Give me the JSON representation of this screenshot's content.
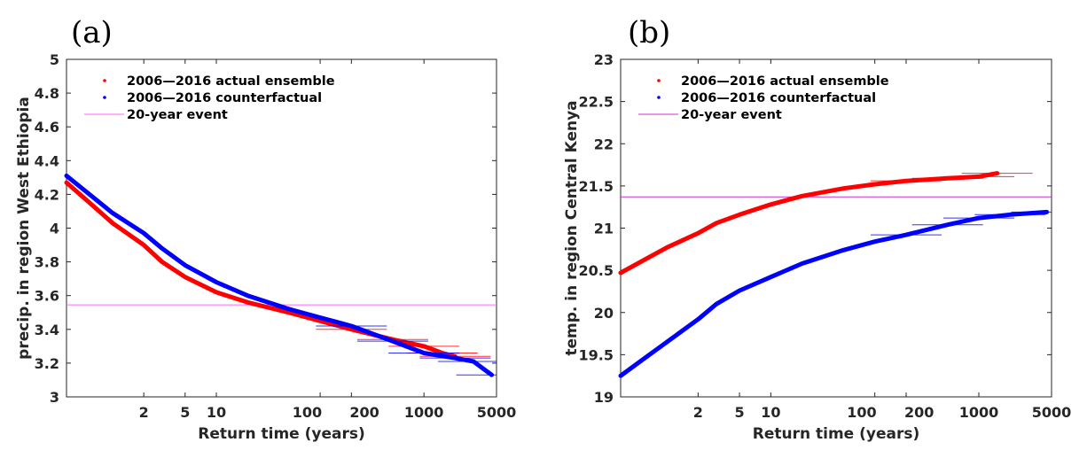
{
  "chart_data": [
    {
      "panel_label": "(a)",
      "type": "scatter",
      "xlabel": "Return time (years)",
      "ylabel": "precip. in region West Ethiopia",
      "xscale": "log",
      "xlim": [
        0.36,
        5000
      ],
      "ylim": [
        3,
        5
      ],
      "xticks": [
        2,
        5,
        10,
        100,
        200,
        1000,
        5000
      ],
      "xtick_labels": [
        "2",
        "5",
        "10",
        "100",
        "200",
        "1000",
        "5000"
      ],
      "yticks": [
        3,
        3.2,
        3.4,
        3.6,
        3.8,
        4,
        4.2,
        4.4,
        4.6,
        4.8,
        5
      ],
      "ytick_labels": [
        "3",
        "3.2",
        "3.4",
        "3.6",
        "3.8",
        "4",
        "4.2",
        "4.4",
        "4.6",
        "4.8",
        "5"
      ],
      "legend_position": "top-left",
      "series": [
        {
          "name": "2006—2016 actual ensemble",
          "color": "#ff0000",
          "x": [
            0.36,
            0.6,
            1,
            2,
            3,
            5,
            10,
            20,
            50,
            100,
            200,
            500,
            1000,
            1500,
            2000
          ],
          "y": [
            4.27,
            4.15,
            4.03,
            3.9,
            3.8,
            3.71,
            3.62,
            3.56,
            3.5,
            3.45,
            3.4,
            3.34,
            3.3,
            3.26,
            3.24
          ]
        },
        {
          "name": "2006—2016 counterfactual",
          "color": "#0000ff",
          "x": [
            0.36,
            0.6,
            1,
            2,
            3,
            5,
            10,
            20,
            50,
            100,
            200,
            500,
            1000,
            2000,
            3000,
            4500
          ],
          "y": [
            4.31,
            4.2,
            4.09,
            3.97,
            3.88,
            3.78,
            3.68,
            3.6,
            3.52,
            3.47,
            3.42,
            3.33,
            3.26,
            3.23,
            3.21,
            3.13
          ]
        }
      ],
      "reference_line": {
        "name": "20-year event",
        "y": 3.545,
        "color": "#ff66ff"
      }
    },
    {
      "panel_label": "(b)",
      "type": "scatter",
      "xlabel": "Return time (years)",
      "ylabel": "temp. in region Central Kenya",
      "xscale": "log",
      "xlim": [
        0.36,
        5000
      ],
      "ylim": [
        19,
        23
      ],
      "xticks": [
        2,
        5,
        10,
        100,
        200,
        1000,
        5000
      ],
      "xtick_labels": [
        "2",
        "5",
        "10",
        "100",
        "200",
        "1000",
        "5000"
      ],
      "yticks": [
        19,
        19.5,
        20,
        20.5,
        21,
        21.5,
        22,
        22.5,
        23
      ],
      "ytick_labels": [
        "19",
        "19.5",
        "20",
        "20.5",
        "21",
        "21.5",
        "22",
        "22.5",
        "23"
      ],
      "legend_position": "top-left",
      "series": [
        {
          "name": "2006—2016 actual ensemble",
          "color": "#ff0000",
          "x": [
            0.36,
            0.6,
            1,
            2,
            3,
            5,
            10,
            20,
            50,
            100,
            200,
            500,
            1000,
            1500
          ],
          "y": [
            20.47,
            20.62,
            20.77,
            20.94,
            21.06,
            21.16,
            21.28,
            21.38,
            21.47,
            21.52,
            21.56,
            21.59,
            21.61,
            21.65
          ]
        },
        {
          "name": "2006—2016 counterfactual",
          "color": "#0000ff",
          "x": [
            0.36,
            0.6,
            1,
            2,
            3,
            5,
            10,
            20,
            50,
            100,
            200,
            500,
            1000,
            2000,
            4500
          ],
          "y": [
            19.25,
            19.45,
            19.65,
            19.92,
            20.1,
            20.26,
            20.42,
            20.58,
            20.74,
            20.84,
            20.92,
            21.04,
            21.12,
            21.16,
            21.19
          ]
        }
      ],
      "reference_line": {
        "name": "20-year event",
        "y": 21.37,
        "color": "#cc33cc"
      }
    }
  ]
}
